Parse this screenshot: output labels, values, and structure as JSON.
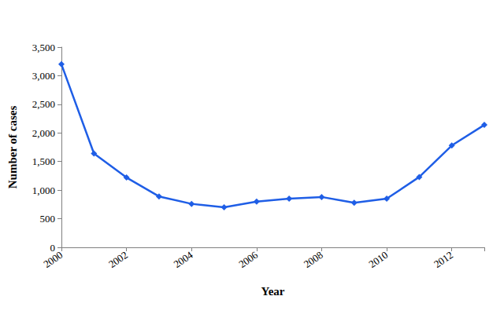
{
  "chart_data": {
    "type": "line",
    "x_label": "Year",
    "y_label": "Number of cases",
    "x": [
      2000,
      2001,
      2002,
      2003,
      2004,
      2005,
      2006,
      2007,
      2008,
      2009,
      2010,
      2011,
      2012,
      2013
    ],
    "values": [
      3200,
      1640,
      1220,
      890,
      760,
      700,
      800,
      850,
      880,
      780,
      850,
      1230,
      1780,
      2140
    ],
    "color": "#1f5ee6",
    "marker": "diamond",
    "line_style": "solid",
    "xlim": [
      2000,
      2013
    ],
    "xticks": [
      2000,
      2002,
      2004,
      2006,
      2008,
      2010,
      2012
    ],
    "ylim": [
      0,
      3500
    ],
    "yticks": [
      0,
      500,
      {
        "value": 1000,
        "label": "1,000"
      },
      {
        "value": 1500,
        "label": "1,500"
      },
      {
        "value": 2000,
        "label": "2,000"
      },
      {
        "value": 2500,
        "label": "2,500"
      },
      {
        "value": 3000,
        "label": "3,000"
      },
      {
        "value": 3500,
        "label": "3,500"
      }
    ],
    "grid": false
  }
}
